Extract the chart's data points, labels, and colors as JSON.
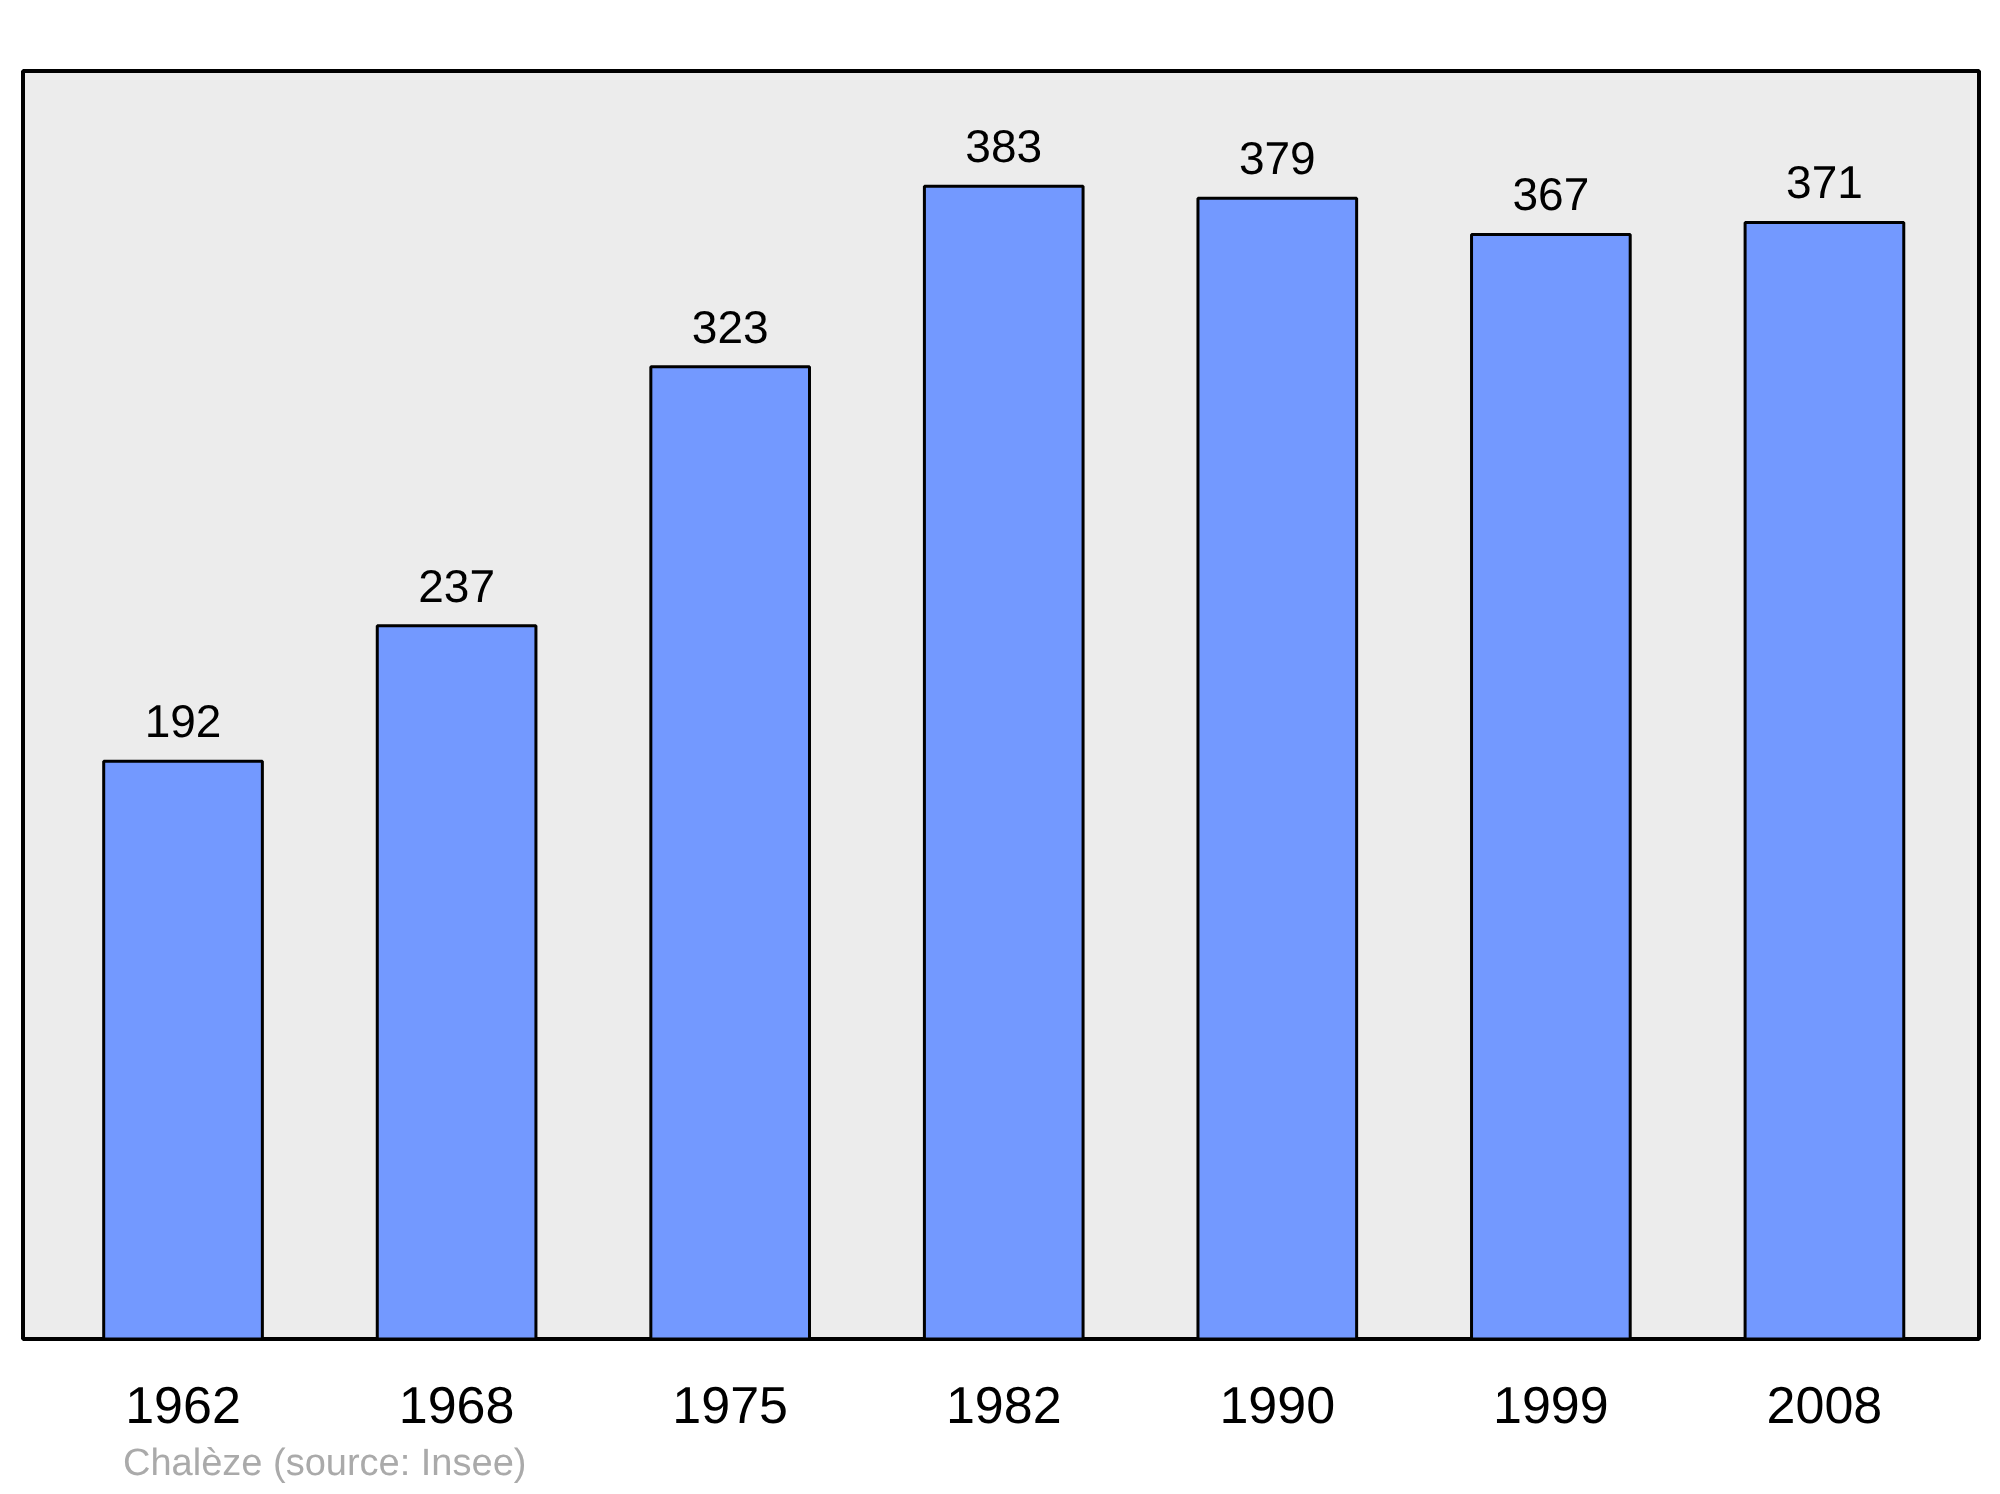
{
  "chart_data": {
    "type": "bar",
    "categories": [
      "1962",
      "1968",
      "1975",
      "1982",
      "1990",
      "1999",
      "2008"
    ],
    "values": [
      192,
      237,
      323,
      383,
      379,
      367,
      371
    ],
    "color": "#7399ff",
    "tick_labels": "x",
    "data_labels": true,
    "annotations": [
      "Chalèze    (source: Insee)"
    ]
  }
}
